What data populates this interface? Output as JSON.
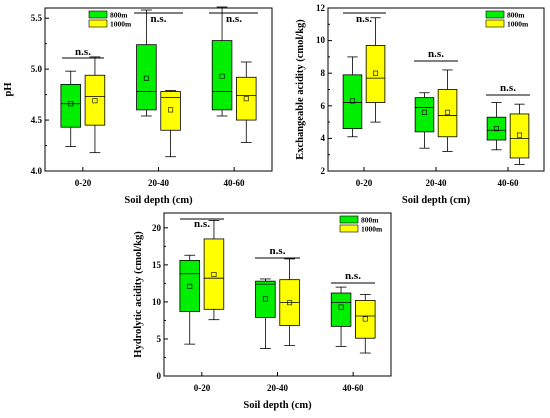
{
  "colors": {
    "series_800m": "#00ee00",
    "series_1000m": "#ffff00",
    "stroke": "#000000"
  },
  "chart_data": [
    {
      "type": "box",
      "id": "ph",
      "xlabel": "Soil depth (cm)",
      "ylabel": "pH",
      "categories": [
        "0-20",
        "20-40",
        "40-60"
      ],
      "ylim": [
        4.0,
        5.6
      ],
      "yticks": [
        "4.0",
        "4.5",
        "5.0",
        "5.5"
      ],
      "yminor": true,
      "legend": {
        "position": "top-right"
      },
      "annotations": [
        "n.s.",
        "n.s.",
        "n.s."
      ],
      "series": [
        {
          "name": "800m",
          "color": "#00ee00",
          "boxes": [
            {
              "min": 4.24,
              "q1": 4.43,
              "median": 4.66,
              "q3": 4.85,
              "max": 4.98,
              "mean": 4.66
            },
            {
              "min": 4.54,
              "q1": 4.6,
              "median": 4.78,
              "q3": 5.24,
              "max": 5.58,
              "mean": 4.91
            },
            {
              "min": 4.54,
              "q1": 4.6,
              "median": 4.78,
              "q3": 5.28,
              "max": 5.61,
              "mean": 4.93
            }
          ]
        },
        {
          "name": "1000m",
          "color": "#ffff00",
          "boxes": [
            {
              "min": 4.18,
              "q1": 4.45,
              "median": 4.73,
              "q3": 4.94,
              "max": 5.12,
              "mean": 4.69
            },
            {
              "min": 4.14,
              "q1": 4.4,
              "median": 4.72,
              "q3": 4.78,
              "max": 4.79,
              "mean": 4.6
            },
            {
              "min": 4.28,
              "q1": 4.5,
              "median": 4.74,
              "q3": 4.92,
              "max": 5.07,
              "mean": 4.71
            }
          ]
        }
      ]
    },
    {
      "type": "box",
      "id": "exchangeable",
      "xlabel": "Soil depth (cm)",
      "ylabel": "Exchangeable acidity (cmol/kg)",
      "categories": [
        "0-20",
        "20-40",
        "40-60"
      ],
      "ylim": [
        2,
        12
      ],
      "yticks": [
        "2",
        "4",
        "6",
        "8",
        "10",
        "12"
      ],
      "yminor": true,
      "legend": {
        "position": "top-right"
      },
      "annotations": [
        "n.s.",
        "n.s.",
        "n.s."
      ],
      "series": [
        {
          "name": "800m",
          "color": "#00ee00",
          "boxes": [
            {
              "min": 4.1,
              "q1": 4.6,
              "median": 6.2,
              "q3": 7.9,
              "max": 9.0,
              "mean": 6.3
            },
            {
              "min": 3.4,
              "q1": 4.4,
              "median": 5.9,
              "q3": 6.5,
              "max": 6.8,
              "mean": 5.6
            },
            {
              "min": 3.3,
              "q1": 3.9,
              "median": 4.5,
              "q3": 5.3,
              "max": 6.2,
              "mean": 4.6
            }
          ]
        },
        {
          "name": "1000m",
          "color": "#ffff00",
          "boxes": [
            {
              "min": 5.0,
              "q1": 6.2,
              "median": 7.7,
              "q3": 9.7,
              "max": 11.4,
              "mean": 8.0
            },
            {
              "min": 3.2,
              "q1": 4.1,
              "median": 5.4,
              "q3": 7.0,
              "max": 8.2,
              "mean": 5.6
            },
            {
              "min": 2.4,
              "q1": 2.8,
              "median": 4.0,
              "q3": 5.5,
              "max": 6.1,
              "mean": 4.2
            }
          ]
        }
      ]
    },
    {
      "type": "box",
      "id": "hydrolytic",
      "xlabel": "Soil depth (cm)",
      "ylabel": "Hydrolytic acidity (cmol/kg)",
      "categories": [
        "0-20",
        "20-40",
        "40-60"
      ],
      "ylim": [
        0,
        22
      ],
      "yticks": [
        "0",
        "5",
        "10",
        "15",
        "20"
      ],
      "yminor": true,
      "legend": {
        "position": "top-right"
      },
      "annotations": [
        "n.s.",
        "n.s.",
        "n.s."
      ],
      "series": [
        {
          "name": "800m",
          "color": "#00ee00",
          "boxes": [
            {
              "min": 4.3,
              "q1": 8.7,
              "median": 13.8,
              "q3": 15.6,
              "max": 16.3,
              "mean": 12.1
            },
            {
              "min": 3.7,
              "q1": 7.9,
              "median": 12.4,
              "q3": 12.8,
              "max": 13.1,
              "mean": 10.4
            },
            {
              "min": 4.0,
              "q1": 6.7,
              "median": 9.9,
              "q3": 11.2,
              "max": 12.0,
              "mean": 9.3
            }
          ]
        },
        {
          "name": "1000m",
          "color": "#ffff00",
          "boxes": [
            {
              "min": 7.6,
              "q1": 9.0,
              "median": 13.2,
              "q3": 18.5,
              "max": 21.0,
              "mean": 13.7
            },
            {
              "min": 4.1,
              "q1": 6.8,
              "median": 9.9,
              "q3": 13.0,
              "max": 15.8,
              "mean": 9.9
            },
            {
              "min": 3.1,
              "q1": 5.1,
              "median": 8.1,
              "q3": 10.2,
              "max": 11.0,
              "mean": 7.7
            }
          ]
        }
      ]
    }
  ]
}
